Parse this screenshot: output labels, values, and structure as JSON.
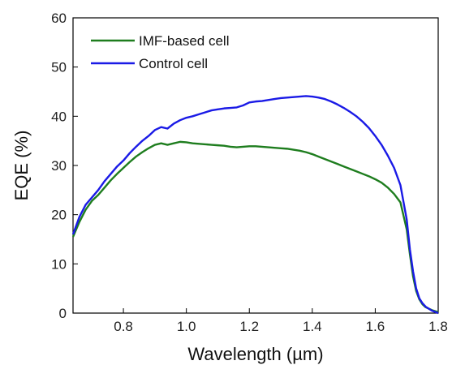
{
  "chart_data": {
    "type": "line",
    "title": "",
    "xlabel": "Wavelength (µm)",
    "ylabel": "EQE (%)",
    "xlim": [
      0.64,
      1.8
    ],
    "ylim": [
      0,
      60
    ],
    "x_ticks": [
      0.8,
      1.0,
      1.2,
      1.4,
      1.6,
      1.8
    ],
    "x_tick_labels": [
      "0.8",
      "1.0",
      "1.2",
      "1.4",
      "1.6",
      "1.8"
    ],
    "y_ticks": [
      0,
      10,
      20,
      30,
      40,
      50,
      60
    ],
    "y_tick_labels": [
      "0",
      "10",
      "20",
      "30",
      "40",
      "50",
      "60"
    ],
    "grid": false,
    "legend_position": "top-left",
    "series": [
      {
        "name": "IMF-based cell",
        "color": "#1e7d1e",
        "x": [
          0.64,
          0.66,
          0.68,
          0.7,
          0.72,
          0.74,
          0.76,
          0.78,
          0.8,
          0.82,
          0.84,
          0.86,
          0.88,
          0.9,
          0.92,
          0.94,
          0.96,
          0.98,
          1.0,
          1.02,
          1.04,
          1.06,
          1.08,
          1.1,
          1.12,
          1.14,
          1.16,
          1.18,
          1.2,
          1.22,
          1.24,
          1.26,
          1.28,
          1.3,
          1.32,
          1.34,
          1.36,
          1.38,
          1.4,
          1.42,
          1.44,
          1.46,
          1.48,
          1.5,
          1.52,
          1.54,
          1.56,
          1.58,
          1.6,
          1.62,
          1.64,
          1.66,
          1.68,
          1.7,
          1.71,
          1.72,
          1.73,
          1.74,
          1.75,
          1.76,
          1.78,
          1.8
        ],
        "y": [
          15.5,
          18.5,
          21.0,
          22.8,
          24.0,
          25.5,
          27.0,
          28.3,
          29.5,
          30.7,
          31.8,
          32.7,
          33.5,
          34.2,
          34.5,
          34.2,
          34.5,
          34.8,
          34.7,
          34.5,
          34.4,
          34.3,
          34.2,
          34.1,
          34.0,
          33.8,
          33.7,
          33.8,
          33.9,
          33.9,
          33.8,
          33.7,
          33.6,
          33.5,
          33.4,
          33.2,
          33.0,
          32.7,
          32.3,
          31.8,
          31.3,
          30.8,
          30.3,
          29.8,
          29.3,
          28.8,
          28.3,
          27.8,
          27.2,
          26.5,
          25.5,
          24.2,
          22.5,
          17.0,
          12.0,
          7.5,
          4.5,
          2.8,
          1.8,
          1.2,
          0.6,
          0.2
        ]
      },
      {
        "name": "Control cell",
        "color": "#1a1ae6",
        "x": [
          0.64,
          0.66,
          0.68,
          0.7,
          0.72,
          0.74,
          0.76,
          0.78,
          0.8,
          0.82,
          0.84,
          0.86,
          0.88,
          0.9,
          0.92,
          0.94,
          0.96,
          0.98,
          1.0,
          1.02,
          1.04,
          1.06,
          1.08,
          1.1,
          1.12,
          1.14,
          1.16,
          1.18,
          1.2,
          1.22,
          1.24,
          1.26,
          1.28,
          1.3,
          1.32,
          1.34,
          1.36,
          1.38,
          1.4,
          1.42,
          1.44,
          1.46,
          1.48,
          1.5,
          1.52,
          1.54,
          1.56,
          1.58,
          1.6,
          1.62,
          1.64,
          1.66,
          1.68,
          1.7,
          1.71,
          1.72,
          1.73,
          1.74,
          1.75,
          1.76,
          1.78,
          1.8
        ],
        "y": [
          16.0,
          19.5,
          22.0,
          23.5,
          25.0,
          26.8,
          28.3,
          29.8,
          31.0,
          32.5,
          33.8,
          35.0,
          36.0,
          37.2,
          37.8,
          37.5,
          38.5,
          39.2,
          39.7,
          40.0,
          40.4,
          40.8,
          41.2,
          41.4,
          41.6,
          41.7,
          41.8,
          42.2,
          42.8,
          43.0,
          43.1,
          43.3,
          43.5,
          43.7,
          43.8,
          43.9,
          44.0,
          44.1,
          44.0,
          43.8,
          43.5,
          43.0,
          42.4,
          41.7,
          40.9,
          40.0,
          38.9,
          37.6,
          36.0,
          34.2,
          32.0,
          29.5,
          26.0,
          19.0,
          13.0,
          8.5,
          5.0,
          3.0,
          2.0,
          1.3,
          0.5,
          0.0
        ]
      }
    ]
  }
}
